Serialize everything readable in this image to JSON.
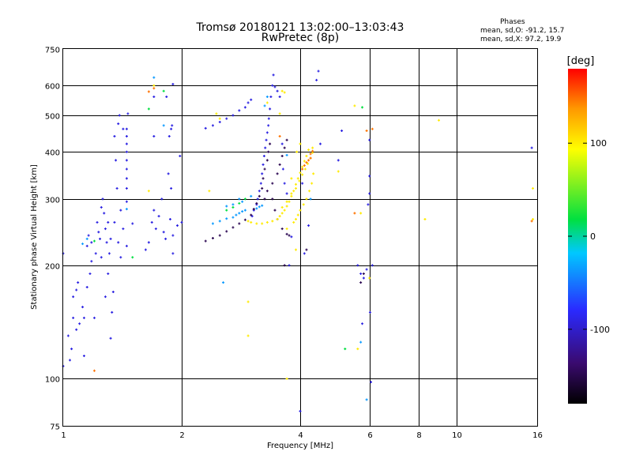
{
  "title": {
    "line1": "Tromsø 20180121 13:02:00–13:03:43",
    "line2": "RwPretec (8p)"
  },
  "phase_stats": {
    "header": "Phases",
    "o_line": "mean, sd,O: -91.2, 15.7",
    "x_line": "mean, sd,X:  97.2, 19.9"
  },
  "chart_data": {
    "type": "scatter",
    "title": "Tromsø 20180121 13:02:00–13:03:43",
    "subtitle": "RwPretec (8p)",
    "xlabel": "Frequency [MHz]",
    "ylabel": "Stationary phase Virtual Height [km]",
    "x_scale": "log",
    "y_scale": "log",
    "xlim": [
      1,
      16
    ],
    "ylim": [
      75,
      750
    ],
    "xticks": [
      1,
      2,
      4,
      6,
      8,
      10,
      16
    ],
    "yticks": [
      75,
      100,
      200,
      300,
      400,
      500,
      600,
      750
    ],
    "grid": true,
    "colorbar": {
      "label": "[deg]",
      "ticks": [
        -100,
        0,
        100
      ],
      "range": [
        -180,
        180
      ],
      "colors": [
        "#000000",
        "#3a0a6e",
        "#2a2aff",
        "#00c8ff",
        "#00e040",
        "#ffff00",
        "#ff9900",
        "#ff0000"
      ]
    },
    "series": [
      {
        "phase": -100,
        "points": [
          [
            1.0,
            108
          ],
          [
            1.0,
            215
          ],
          [
            1.03,
            130
          ],
          [
            1.04,
            112
          ],
          [
            1.05,
            120
          ],
          [
            1.06,
            145
          ],
          [
            1.06,
            165
          ],
          [
            1.08,
            135
          ],
          [
            1.08,
            172
          ],
          [
            1.09,
            180
          ],
          [
            1.1,
            140
          ],
          [
            1.12,
            155
          ],
          [
            1.13,
            115
          ],
          [
            1.13,
            145
          ],
          [
            1.15,
            175
          ],
          [
            1.15,
            225
          ],
          [
            1.16,
            240
          ],
          [
            1.17,
            190
          ],
          [
            1.18,
            205
          ],
          [
            1.18,
            230
          ],
          [
            1.2,
            145
          ],
          [
            1.21,
            215
          ],
          [
            1.22,
            260
          ],
          [
            1.23,
            245
          ],
          [
            1.24,
            235
          ],
          [
            1.25,
            210
          ],
          [
            1.25,
            285
          ],
          [
            1.26,
            300
          ],
          [
            1.27,
            275
          ],
          [
            1.28,
            165
          ],
          [
            1.28,
            250
          ],
          [
            1.29,
            230
          ],
          [
            1.3,
            190
          ],
          [
            1.3,
            260
          ],
          [
            1.31,
            215
          ],
          [
            1.32,
            128
          ],
          [
            1.32,
            235
          ],
          [
            1.33,
            150
          ],
          [
            1.34,
            170
          ],
          [
            1.35,
            260
          ],
          [
            1.35,
            440
          ],
          [
            1.36,
            380
          ],
          [
            1.37,
            320
          ],
          [
            1.38,
            230
          ],
          [
            1.38,
            475
          ],
          [
            1.39,
            500
          ],
          [
            1.4,
            210
          ],
          [
            1.4,
            280
          ],
          [
            1.42,
            250
          ],
          [
            1.42,
            460
          ],
          [
            1.45,
            225
          ],
          [
            1.45,
            295
          ],
          [
            1.45,
            320
          ],
          [
            1.45,
            340
          ],
          [
            1.45,
            360
          ],
          [
            1.45,
            380
          ],
          [
            1.45,
            400
          ],
          [
            1.45,
            420
          ],
          [
            1.45,
            440
          ],
          [
            1.45,
            460
          ],
          [
            1.46,
            505
          ],
          [
            1.5,
            258
          ],
          [
            1.62,
            220
          ],
          [
            1.65,
            230
          ],
          [
            1.68,
            260
          ],
          [
            1.7,
            280
          ],
          [
            1.72,
            250
          ],
          [
            1.75,
            270
          ],
          [
            1.78,
            300
          ],
          [
            1.8,
            245
          ],
          [
            1.82,
            235
          ],
          [
            1.83,
            560
          ],
          [
            1.85,
            350
          ],
          [
            1.86,
            440
          ],
          [
            1.87,
            265
          ],
          [
            1.88,
            320
          ],
          [
            1.88,
            460
          ],
          [
            1.89,
            470
          ],
          [
            1.9,
            240
          ],
          [
            1.9,
            605
          ],
          [
            1.7,
            560
          ],
          [
            1.7,
            440
          ],
          [
            1.9,
            215
          ],
          [
            1.95,
            255
          ],
          [
            1.98,
            390
          ],
          [
            2.0,
            260
          ],
          [
            2.3,
            462
          ],
          [
            2.4,
            470
          ],
          [
            2.5,
            480
          ],
          [
            2.6,
            490
          ],
          [
            2.7,
            500
          ],
          [
            2.8,
            515
          ],
          [
            2.9,
            525
          ],
          [
            2.95,
            540
          ],
          [
            3.0,
            550
          ],
          [
            3.02,
            270
          ],
          [
            3.05,
            280
          ],
          [
            3.1,
            290
          ],
          [
            3.12,
            300
          ],
          [
            3.15,
            315
          ],
          [
            3.18,
            330
          ],
          [
            3.2,
            350
          ],
          [
            3.22,
            370
          ],
          [
            3.24,
            390
          ],
          [
            3.26,
            410
          ],
          [
            3.28,
            430
          ],
          [
            3.3,
            450
          ],
          [
            3.32,
            470
          ],
          [
            3.33,
            490
          ],
          [
            3.35,
            520
          ],
          [
            3.37,
            560
          ],
          [
            3.4,
            600
          ],
          [
            3.42,
            640
          ],
          [
            3.45,
            595
          ],
          [
            3.5,
            580
          ],
          [
            3.55,
            560
          ],
          [
            3.6,
            420
          ],
          [
            3.62,
            360
          ],
          [
            3.65,
            330
          ],
          [
            3.7,
            310
          ],
          [
            3.75,
            200
          ],
          [
            3.8,
            238
          ],
          [
            4.05,
            330
          ],
          [
            4.1,
            215
          ],
          [
            4.2,
            255
          ],
          [
            4.4,
            620
          ],
          [
            4.45,
            655
          ],
          [
            4.5,
            420
          ],
          [
            5.0,
            380
          ],
          [
            5.1,
            455
          ],
          [
            5.6,
            200
          ],
          [
            5.7,
            190
          ],
          [
            5.75,
            140
          ],
          [
            5.8,
            185
          ],
          [
            5.9,
            195
          ],
          [
            5.95,
            290
          ],
          [
            6.0,
            430
          ],
          [
            6.0,
            345
          ],
          [
            6.0,
            310
          ],
          [
            6.02,
            150
          ],
          [
            6.05,
            98
          ],
          [
            6.1,
            200
          ],
          [
            4.0,
            82
          ],
          [
            15.5,
            410
          ]
        ]
      },
      {
        "phase": -150,
        "points": [
          [
            2.3,
            232
          ],
          [
            2.4,
            236
          ],
          [
            2.5,
            240
          ],
          [
            2.6,
            246
          ],
          [
            2.7,
            252
          ],
          [
            2.8,
            258
          ],
          [
            2.9,
            264
          ],
          [
            3.0,
            272
          ],
          [
            3.05,
            282
          ],
          [
            3.1,
            292
          ],
          [
            3.15,
            305
          ],
          [
            3.2,
            320
          ],
          [
            3.22,
            340
          ],
          [
            3.25,
            360
          ],
          [
            3.3,
            380
          ],
          [
            3.32,
            400
          ],
          [
            3.35,
            420
          ],
          [
            3.25,
            300
          ],
          [
            3.3,
            315
          ],
          [
            3.4,
            330
          ],
          [
            3.5,
            350
          ],
          [
            3.55,
            370
          ],
          [
            3.6,
            390
          ],
          [
            3.65,
            410
          ],
          [
            3.7,
            430
          ],
          [
            3.4,
            300
          ],
          [
            3.45,
            280
          ],
          [
            3.5,
            265
          ],
          [
            3.6,
            250
          ],
          [
            3.7,
            242
          ],
          [
            3.75,
            240
          ],
          [
            3.65,
            200
          ],
          [
            4.15,
            220
          ],
          [
            5.8,
            190
          ],
          [
            5.7,
            180
          ]
        ]
      },
      {
        "phase": -40,
        "points": [
          [
            2.4,
            258
          ],
          [
            2.5,
            262
          ],
          [
            2.6,
            266
          ],
          [
            2.7,
            268
          ],
          [
            2.75,
            272
          ],
          [
            2.8,
            275
          ],
          [
            2.85,
            278
          ],
          [
            2.9,
            280
          ],
          [
            3.1,
            283
          ],
          [
            3.15,
            286
          ],
          [
            3.2,
            288
          ],
          [
            2.6,
            287
          ],
          [
            2.7,
            290
          ],
          [
            2.8,
            300
          ],
          [
            2.85,
            295
          ],
          [
            3.0,
            305
          ],
          [
            1.15,
            235
          ],
          [
            1.12,
            228
          ],
          [
            1.45,
            282
          ],
          [
            1.8,
            470
          ],
          [
            1.7,
            630
          ],
          [
            3.25,
            530
          ],
          [
            3.3,
            560
          ],
          [
            4.25,
            300
          ],
          [
            5.7,
            125
          ],
          [
            5.9,
            88
          ],
          [
            3.7,
            392
          ],
          [
            2.55,
            180
          ]
        ]
      },
      {
        "phase": 100,
        "points": [
          [
            2.95,
            262
          ],
          [
            3.0,
            260
          ],
          [
            3.1,
            258
          ],
          [
            3.2,
            258
          ],
          [
            3.3,
            260
          ],
          [
            3.4,
            262
          ],
          [
            3.5,
            265
          ],
          [
            3.55,
            270
          ],
          [
            3.6,
            275
          ],
          [
            3.65,
            280
          ],
          [
            3.7,
            287
          ],
          [
            3.75,
            295
          ],
          [
            3.8,
            305
          ],
          [
            3.85,
            315
          ],
          [
            3.9,
            328
          ],
          [
            3.95,
            340
          ],
          [
            4.0,
            352
          ],
          [
            4.05,
            365
          ],
          [
            4.1,
            378
          ],
          [
            4.15,
            390
          ],
          [
            4.2,
            405
          ],
          [
            3.6,
            285
          ],
          [
            3.7,
            295
          ],
          [
            3.8,
            310
          ],
          [
            3.9,
            320
          ],
          [
            3.98,
            335
          ],
          [
            4.05,
            348
          ],
          [
            4.12,
            360
          ],
          [
            4.18,
            372
          ],
          [
            4.25,
            385
          ],
          [
            4.3,
            398
          ],
          [
            4.3,
            410
          ],
          [
            3.85,
            260
          ],
          [
            3.9,
            265
          ],
          [
            3.95,
            272
          ],
          [
            4.0,
            280
          ],
          [
            4.08,
            290
          ],
          [
            4.15,
            300
          ],
          [
            4.22,
            315
          ],
          [
            4.28,
            330
          ],
          [
            4.32,
            350
          ],
          [
            3.7,
            250
          ],
          [
            3.8,
            340
          ],
          [
            3.92,
            400
          ],
          [
            4.0,
            420
          ],
          [
            3.55,
            505
          ],
          [
            3.3,
            540
          ],
          [
            3.6,
            580
          ],
          [
            3.65,
            575
          ],
          [
            2.5,
            490
          ],
          [
            2.45,
            505
          ],
          [
            2.35,
            315
          ],
          [
            3.9,
            220
          ],
          [
            2.95,
            160
          ],
          [
            2.95,
            130
          ],
          [
            5.5,
            530
          ],
          [
            5.0,
            355
          ],
          [
            5.7,
            275
          ],
          [
            5.6,
            120
          ],
          [
            6.0,
            185
          ],
          [
            8.3,
            265
          ],
          [
            9.0,
            485
          ],
          [
            15.6,
            320
          ],
          [
            15.6,
            265
          ],
          [
            3.7,
            100
          ],
          [
            1.65,
            315
          ],
          [
            1.7,
            600
          ]
        ]
      },
      {
        "phase": 150,
        "points": [
          [
            4.25,
            395
          ],
          [
            4.3,
            402
          ],
          [
            4.25,
            385
          ],
          [
            4.2,
            380
          ],
          [
            4.15,
            375
          ],
          [
            4.1,
            368
          ],
          [
            4.05,
            360
          ],
          [
            3.55,
            440
          ],
          [
            1.65,
            578
          ],
          [
            1.7,
            590
          ],
          [
            1.2,
            105
          ],
          [
            5.5,
            275
          ],
          [
            5.9,
            455
          ],
          [
            6.1,
            460
          ],
          [
            15.5,
            262
          ]
        ]
      },
      {
        "phase": 10,
        "points": [
          [
            2.6,
            280
          ],
          [
            2.7,
            285
          ],
          [
            2.8,
            292
          ],
          [
            2.9,
            300
          ],
          [
            1.65,
            520
          ],
          [
            1.8,
            580
          ],
          [
            1.2,
            232
          ],
          [
            1.5,
            210
          ],
          [
            5.2,
            120
          ],
          [
            5.75,
            525
          ]
        ]
      }
    ]
  }
}
